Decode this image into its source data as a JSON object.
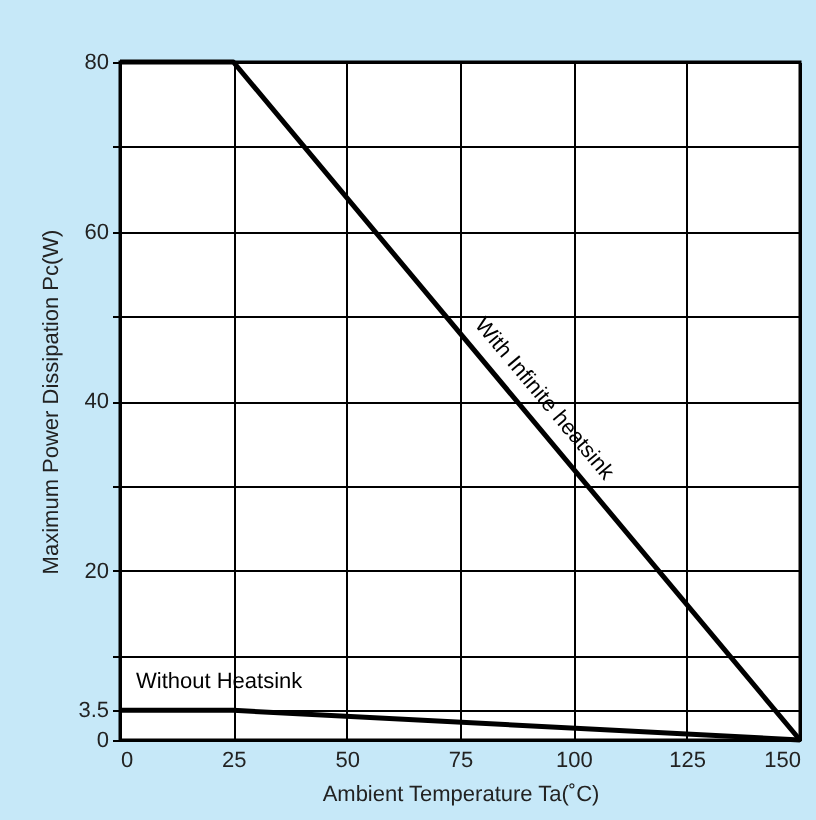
{
  "chart_data": {
    "type": "line",
    "xlabel": "Ambient Temperature Ta(˚C)",
    "ylabel": "Maximum  Power  Dissipation  Pc(W)",
    "x": [
      0,
      25,
      150
    ],
    "series": [
      {
        "name": "With Infinite heatsink",
        "color": "#000000",
        "values": [
          80,
          80,
          0
        ]
      },
      {
        "name": "Without Heatsink",
        "color": "#000000",
        "values": [
          3.5,
          3.5,
          0
        ]
      }
    ],
    "xlim": [
      0,
      150
    ],
    "xticks": [
      0,
      25,
      50,
      75,
      100,
      125,
      150
    ],
    "ylim": [
      0,
      80
    ],
    "yticks": [
      0,
      3.5,
      {
        "value": 10,
        "label": null
      },
      20,
      {
        "value": 30,
        "label": null
      },
      40,
      {
        "value": 50,
        "label": null
      },
      60,
      {
        "value": 70,
        "label": null
      },
      80
    ],
    "grid": true,
    "legend": false,
    "marker": "none",
    "line_style": "solid"
  }
}
